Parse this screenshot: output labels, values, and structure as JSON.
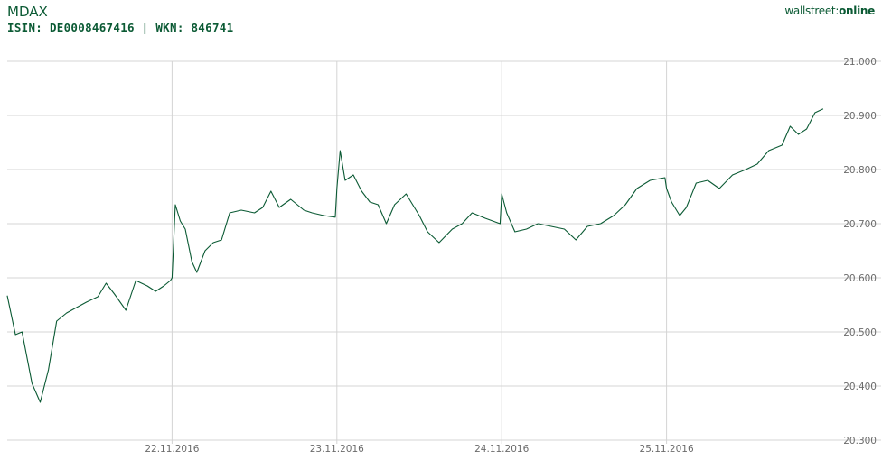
{
  "header": {
    "title": "MDAX",
    "subtitle": "ISIN: DE0008467416 | WKN: 846741",
    "brand_part1": "wallstreet:",
    "brand_part2": "online"
  },
  "colors": {
    "line": "#0b5a34",
    "grid": "#d4d4d4",
    "text": "#6b6b6b",
    "brand": "#0b5a34"
  },
  "chart_data": {
    "type": "line",
    "title": "MDAX",
    "xlabel": "",
    "ylabel": "",
    "ylim": [
      20300,
      21000
    ],
    "y_ticks": [
      "21.000",
      "20.900",
      "20.800",
      "20.700",
      "20.600",
      "20.500",
      "20.400",
      "20.300"
    ],
    "x_ticks": [
      "22.11.2016",
      "23.11.2016",
      "24.11.2016",
      "25.11.2016"
    ],
    "grid": true,
    "series": [
      {
        "name": "MDAX",
        "x": [
          21.0,
          21.05,
          21.09,
          21.15,
          21.2,
          21.25,
          21.3,
          21.36,
          21.42,
          21.48,
          21.55,
          21.6,
          21.65,
          21.72,
          21.78,
          21.85,
          21.9,
          21.95,
          21.99,
          22.0,
          22.02,
          22.05,
          22.08,
          22.12,
          22.15,
          22.2,
          22.25,
          22.3,
          22.35,
          22.42,
          22.5,
          22.55,
          22.6,
          22.65,
          22.72,
          22.8,
          22.85,
          22.92,
          22.99,
          23.0,
          23.02,
          23.05,
          23.1,
          23.15,
          23.2,
          23.25,
          23.3,
          23.35,
          23.42,
          23.5,
          23.55,
          23.62,
          23.7,
          23.76,
          23.82,
          23.9,
          23.99,
          24.0,
          24.03,
          24.08,
          24.15,
          24.22,
          24.3,
          24.38,
          24.45,
          24.52,
          24.6,
          24.68,
          24.75,
          24.82,
          24.9,
          24.99,
          25.0,
          25.03,
          25.08,
          25.12,
          25.18,
          25.25,
          25.32,
          25.4,
          25.48,
          25.55,
          25.62,
          25.7,
          25.75,
          25.8,
          25.85,
          25.9,
          25.95
        ],
        "y": [
          20567,
          20495,
          20500,
          20405,
          20370,
          20430,
          20520,
          20535,
          20545,
          20555,
          20565,
          20590,
          20570,
          20540,
          20595,
          20585,
          20575,
          20585,
          20595,
          20600,
          20735,
          20705,
          20690,
          20630,
          20610,
          20650,
          20665,
          20670,
          20720,
          20725,
          20720,
          20730,
          20760,
          20730,
          20745,
          20725,
          20720,
          20715,
          20712,
          20765,
          20835,
          20780,
          20790,
          20760,
          20740,
          20735,
          20700,
          20735,
          20755,
          20715,
          20685,
          20665,
          20690,
          20700,
          20720,
          20710,
          20700,
          20755,
          20720,
          20685,
          20690,
          20700,
          20695,
          20690,
          20670,
          20695,
          20700,
          20715,
          20735,
          20765,
          20780,
          20785,
          20765,
          20740,
          20715,
          20730,
          20775,
          20780,
          20765,
          20790,
          20800,
          20810,
          20835,
          20845,
          20880,
          20865,
          20875,
          20905,
          20912
        ]
      }
    ]
  }
}
